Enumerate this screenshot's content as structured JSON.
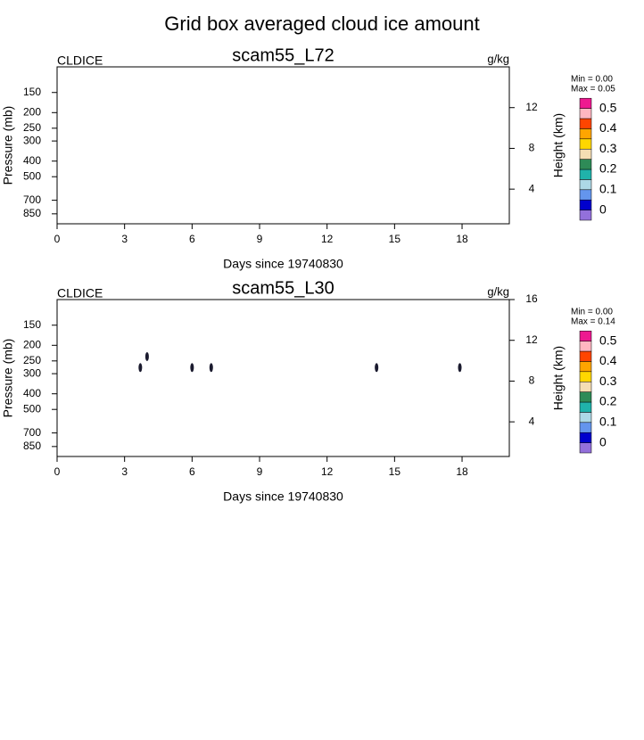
{
  "title": "Grid box averaged cloud ice amount",
  "chart_data": [
    {
      "type": "contour",
      "title": "scam55_L72",
      "left_label": "CLDICE",
      "right_label": "g/kg",
      "xlabel": "Days since 19740830",
      "ylabel": "Pressure (mb)",
      "y2label": "Height (km)",
      "xlim": [
        0,
        20.1
      ],
      "xticks": [
        0,
        3,
        6,
        9,
        12,
        15,
        18
      ],
      "ylim": [
        980,
        104
      ],
      "yticks": [
        150,
        200,
        250,
        300,
        400,
        500,
        700,
        850
      ],
      "log_y": true,
      "y2lim": [
        0.6,
        16
      ],
      "y2ticks": [
        4,
        8,
        12
      ],
      "min_label": "Min =   0.00",
      "max_label": "Max =   0.05",
      "colorbar": {
        "colors": [
          "#9370db",
          "#0000cd",
          "#6495ed",
          "#add8e6",
          "#20b2aa",
          "#2e8b57",
          "#f5deb3",
          "#ffd700",
          "#ffa500",
          "#ff4500",
          "#ffb6c1",
          "#ee1990"
        ],
        "levels": [
          0,
          0.1,
          0.2,
          0.3,
          0.4,
          0.5
        ]
      }
    },
    {
      "type": "contour",
      "title": "scam55_L30",
      "left_label": "CLDICE",
      "right_label": "g/kg",
      "xlabel": "Days since 19740830",
      "ylabel": "Pressure (mb)",
      "y2label": "Height (km)",
      "xlim": [
        0,
        20.1
      ],
      "xticks": [
        0,
        3,
        6,
        9,
        12,
        15,
        18
      ],
      "ylim": [
        980,
        104
      ],
      "yticks": [
        150,
        200,
        250,
        300,
        400,
        500,
        700,
        850
      ],
      "log_y": true,
      "y2lim": [
        0.6,
        16
      ],
      "y2ticks": [
        4,
        8,
        12,
        16
      ],
      "min_label": "Min =   0.00",
      "max_label": "Max =   0.14",
      "colorbar": {
        "colors": [
          "#9370db",
          "#0000cd",
          "#6495ed",
          "#add8e6",
          "#20b2aa",
          "#2e8b57",
          "#f5deb3",
          "#ffd700",
          "#ffa500",
          "#ff4500",
          "#ffb6c1",
          "#ee1990"
        ],
        "levels": [
          0,
          0.1,
          0.2,
          0.3,
          0.4,
          0.5
        ]
      },
      "contours": {
        "x": [
          3.7,
          4.0,
          6.0,
          6.85,
          14.2,
          17.9
        ],
        "values": [
          275,
          235,
          275,
          275,
          275,
          275
        ],
        "color": "#1a1a2e"
      }
    }
  ]
}
